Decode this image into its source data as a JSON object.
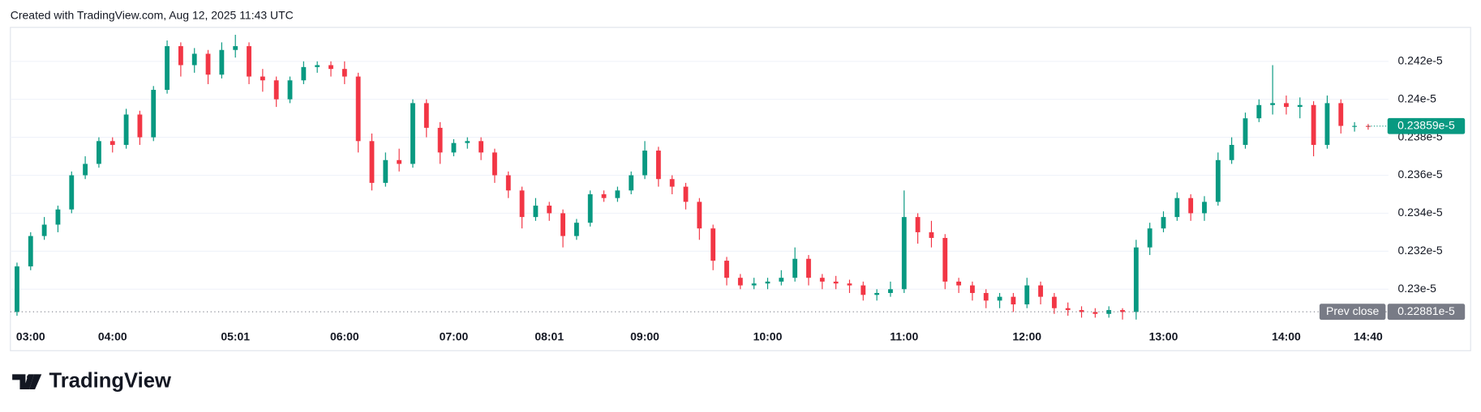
{
  "caption": "Created with TradingView.com, Aug 12, 2025 11:43 UTC",
  "brand": "TradingView",
  "chart_data": {
    "type": "candlestick",
    "up_color": "#089981",
    "down_color": "#f23645",
    "categories": [
      null,
      "03:00",
      null,
      null,
      null,
      null,
      null,
      "04:00",
      null,
      null,
      null,
      null,
      null,
      null,
      null,
      null,
      "05:01",
      null,
      null,
      null,
      null,
      null,
      null,
      null,
      "06:00",
      null,
      null,
      null,
      null,
      null,
      null,
      null,
      "07:00",
      null,
      null,
      null,
      null,
      null,
      null,
      "08:01",
      null,
      null,
      null,
      null,
      null,
      null,
      "09:00",
      null,
      null,
      null,
      null,
      null,
      null,
      null,
      null,
      "10:00",
      null,
      null,
      null,
      null,
      null,
      null,
      null,
      null,
      null,
      "11:00",
      null,
      null,
      null,
      null,
      null,
      null,
      null,
      null,
      "12:00",
      null,
      null,
      null,
      null,
      null,
      null,
      null,
      null,
      null,
      "13:00",
      null,
      null,
      null,
      null,
      null,
      null,
      null,
      null,
      "14:00",
      null,
      null,
      null,
      null,
      null,
      "14:40"
    ],
    "open": [
      0.2288,
      0.2312,
      0.2328,
      0.2334,
      0.2342,
      0.236,
      0.2366,
      0.2378,
      0.2376,
      0.2392,
      0.238,
      0.2405,
      0.2428,
      0.2418,
      0.2424,
      0.2413,
      0.2426,
      0.2428,
      0.2412,
      0.241,
      0.24,
      0.241,
      0.2417,
      0.2418,
      0.2416,
      0.2412,
      0.2378,
      0.2356,
      0.2368,
      0.2366,
      0.2398,
      0.2385,
      0.2372,
      0.2377,
      0.2378,
      0.2372,
      0.236,
      0.2352,
      0.2338,
      0.2344,
      0.234,
      0.2328,
      0.2335,
      0.235,
      0.2348,
      0.2352,
      0.236,
      0.2373,
      0.2358,
      0.2354,
      0.2346,
      0.2332,
      0.2315,
      0.2306,
      0.2302,
      0.2303,
      0.2304,
      0.2306,
      0.2316,
      0.2306,
      0.2304,
      0.2303,
      0.2302,
      0.2297,
      0.2298,
      0.23,
      0.2338,
      0.233,
      0.2327,
      0.2304,
      0.2302,
      0.2298,
      0.2294,
      0.2296,
      0.2292,
      0.2302,
      0.2296,
      0.229,
      0.2289,
      0.2288,
      0.2287,
      0.2289,
      0.2288,
      0.2322,
      0.2332,
      0.2338,
      0.2348,
      0.234,
      0.2346,
      0.2368,
      0.2376,
      0.239,
      0.2397,
      0.2398,
      0.2396,
      0.2397,
      0.2376,
      0.2398,
      0.2386,
      0.2386
    ],
    "high": [
      0.2314,
      0.233,
      0.2338,
      0.2344,
      0.2362,
      0.237,
      0.238,
      0.238,
      0.2395,
      0.2394,
      0.2407,
      0.2431,
      0.243,
      0.2427,
      0.2426,
      0.243,
      0.2434,
      0.243,
      0.2416,
      0.2412,
      0.2412,
      0.242,
      0.242,
      0.242,
      0.242,
      0.2414,
      0.2382,
      0.2372,
      0.2374,
      0.24,
      0.24,
      0.2388,
      0.2379,
      0.238,
      0.238,
      0.2374,
      0.2362,
      0.2354,
      0.2348,
      0.2346,
      0.2342,
      0.2337,
      0.2352,
      0.2352,
      0.2354,
      0.2362,
      0.2378,
      0.2375,
      0.236,
      0.2356,
      0.2348,
      0.2334,
      0.2317,
      0.2308,
      0.2306,
      0.2306,
      0.231,
      0.2322,
      0.2318,
      0.2308,
      0.2307,
      0.2305,
      0.2304,
      0.23,
      0.2304,
      0.2352,
      0.234,
      0.2336,
      0.2329,
      0.2306,
      0.2304,
      0.23,
      0.2298,
      0.2298,
      0.2306,
      0.2304,
      0.2298,
      0.2293,
      0.2291,
      0.229,
      0.2291,
      0.229,
      0.2326,
      0.2335,
      0.2341,
      0.2351,
      0.235,
      0.2349,
      0.2372,
      0.238,
      0.2393,
      0.24,
      0.2418,
      0.2402,
      0.2401,
      0.2399,
      0.2402,
      0.24,
      0.2388,
      0.2387
    ],
    "low": [
      0.2286,
      0.231,
      0.2326,
      0.233,
      0.234,
      0.2358,
      0.2364,
      0.2372,
      0.2374,
      0.2376,
      0.2378,
      0.2403,
      0.2412,
      0.2414,
      0.2408,
      0.2411,
      0.2422,
      0.2408,
      0.2404,
      0.2396,
      0.2398,
      0.2408,
      0.2414,
      0.2412,
      0.2408,
      0.2372,
      0.2352,
      0.2354,
      0.2362,
      0.2364,
      0.238,
      0.2366,
      0.237,
      0.2374,
      0.2368,
      0.2356,
      0.2348,
      0.2332,
      0.2336,
      0.2336,
      0.2322,
      0.2326,
      0.2333,
      0.2346,
      0.2346,
      0.235,
      0.2358,
      0.2354,
      0.235,
      0.2342,
      0.2326,
      0.231,
      0.2302,
      0.23,
      0.23,
      0.23,
      0.2302,
      0.2304,
      0.2302,
      0.23,
      0.23,
      0.2298,
      0.2294,
      0.2294,
      0.2296,
      0.2298,
      0.2324,
      0.2322,
      0.23,
      0.2298,
      0.2294,
      0.229,
      0.229,
      0.2288,
      0.229,
      0.2292,
      0.2287,
      0.2286,
      0.2285,
      0.2285,
      0.2285,
      0.2284,
      0.2284,
      0.2318,
      0.233,
      0.2336,
      0.2336,
      0.2336,
      0.2344,
      0.2366,
      0.2374,
      0.2388,
      0.2392,
      0.2392,
      0.239,
      0.237,
      0.2374,
      0.2382,
      0.2383,
      0.2384
    ],
    "close": [
      0.2312,
      0.2328,
      0.2334,
      0.2342,
      0.236,
      0.2366,
      0.2378,
      0.2376,
      0.2392,
      0.238,
      0.2405,
      0.2428,
      0.2418,
      0.2424,
      0.2413,
      0.2426,
      0.2428,
      0.2412,
      0.241,
      0.24,
      0.241,
      0.2417,
      0.2418,
      0.2416,
      0.2412,
      0.2378,
      0.2356,
      0.2368,
      0.2366,
      0.2398,
      0.2385,
      0.2372,
      0.2377,
      0.2378,
      0.2372,
      0.236,
      0.2352,
      0.2338,
      0.2344,
      0.234,
      0.2328,
      0.2335,
      0.235,
      0.2348,
      0.2352,
      0.236,
      0.2373,
      0.2358,
      0.2354,
      0.2346,
      0.2332,
      0.2315,
      0.2306,
      0.2302,
      0.2303,
      0.2304,
      0.2306,
      0.2316,
      0.2306,
      0.2304,
      0.2303,
      0.2302,
      0.2297,
      0.2298,
      0.23,
      0.2338,
      0.233,
      0.2327,
      0.2304,
      0.2302,
      0.2298,
      0.2294,
      0.2296,
      0.2292,
      0.2302,
      0.2296,
      0.229,
      0.2289,
      0.2288,
      0.2287,
      0.2289,
      0.2288,
      0.2322,
      0.2332,
      0.2338,
      0.2348,
      0.234,
      0.2346,
      0.2368,
      0.2376,
      0.239,
      0.2397,
      0.2398,
      0.2396,
      0.2397,
      0.2376,
      0.2398,
      0.2386,
      0.2386,
      0.23859
    ],
    "ylim": [
      0.22825,
      0.24374
    ],
    "yticks": [
      {
        "value": 0.23,
        "label": "0.23e-5"
      },
      {
        "value": 0.232,
        "label": "0.232e-5"
      },
      {
        "value": 0.234,
        "label": "0.234e-5"
      },
      {
        "value": 0.236,
        "label": "0.236e-5"
      },
      {
        "value": 0.238,
        "label": "0.238e-5"
      },
      {
        "value": 0.24,
        "label": "0.24e-5"
      },
      {
        "value": 0.242,
        "label": "0.242e-5"
      }
    ],
    "last_price": {
      "value": 0.23859,
      "label": "0.23859e-5",
      "color": "#089981"
    },
    "prev_close": {
      "name": "Prev close",
      "value": 0.22881,
      "label": "0.22881e-5",
      "color": "#787b86"
    }
  }
}
